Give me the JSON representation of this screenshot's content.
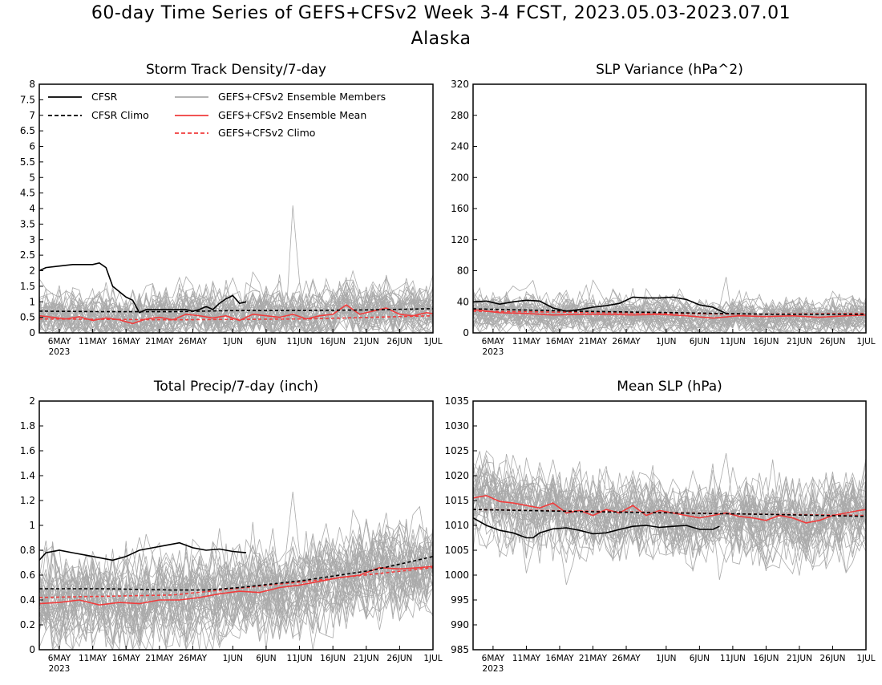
{
  "header": {
    "title_line1": "60-day Time Series of GEFS+CFSv2 Week 3-4 FCST, 2023.05.03-2023.07.01",
    "title_line2": "Alaska"
  },
  "colors": {
    "cfsr": "#000000",
    "ensemble_members": "#aaaaaa",
    "ensemble_mean": "#f03c3c",
    "gefs_climo": "#f03c3c"
  },
  "x_axis": {
    "n_days": 60,
    "tick_labels": [
      "6MAY",
      "11MAY",
      "16MAY",
      "21MAY",
      "26MAY",
      "1JUN",
      "6JUN",
      "11JUN",
      "16JUN",
      "21JUN",
      "26JUN",
      "1JUL"
    ],
    "tick_days": [
      3,
      8,
      13,
      18,
      23,
      29,
      34,
      39,
      44,
      49,
      54,
      59
    ],
    "year_label": "2023"
  },
  "legend": {
    "cfsr": "CFSR",
    "cfsr_climo": "CFSR Climo",
    "members": "GEFS+CFSv2 Ensemble Members",
    "mean": "GEFS+CFSv2 Ensemble Mean",
    "climo": "GEFS+CFSv2 Climo"
  },
  "chart_data": [
    {
      "type": "line",
      "title": "Storm Track Density/7-day",
      "ylim": [
        0,
        8
      ],
      "yticks": [
        "0",
        "0.5",
        "1",
        "1.5",
        "2",
        "2.5",
        "3",
        "3.5",
        "4",
        "4.5",
        "5",
        "5.5",
        "6",
        "6.5",
        "7",
        "7.5",
        "8"
      ],
      "x": "days since 2023-05-03 (0-59)",
      "series": [
        {
          "name": "CFSR",
          "style": "solid-black",
          "x": [
            0,
            1,
            3,
            5,
            8,
            9,
            10,
            11,
            13,
            14,
            15,
            16,
            18,
            20,
            22,
            23,
            24,
            25,
            26,
            27,
            28,
            29,
            30,
            31
          ],
          "values": [
            2.0,
            2.1,
            2.15,
            2.2,
            2.2,
            2.25,
            2.1,
            1.5,
            1.15,
            1.05,
            0.65,
            0.75,
            0.75,
            0.75,
            0.75,
            0.7,
            0.75,
            0.85,
            0.75,
            0.95,
            1.1,
            1.2,
            0.95,
            1.0
          ]
        },
        {
          "name": "CFSR Climo",
          "style": "dashed-black",
          "x": [
            0,
            10,
            20,
            30,
            40,
            50,
            59
          ],
          "values": [
            0.7,
            0.68,
            0.68,
            0.72,
            0.72,
            0.74,
            0.78
          ]
        },
        {
          "name": "GEFS+CFSv2 Ensemble Mean",
          "style": "solid-red",
          "x": [
            0,
            2,
            4,
            6,
            8,
            10,
            12,
            14,
            16,
            18,
            20,
            22,
            24,
            26,
            28,
            30,
            32,
            34,
            36,
            38,
            40,
            42,
            44,
            46,
            48,
            50,
            52,
            54,
            56,
            58,
            59
          ],
          "values": [
            0.55,
            0.5,
            0.45,
            0.52,
            0.4,
            0.48,
            0.42,
            0.3,
            0.45,
            0.5,
            0.42,
            0.6,
            0.55,
            0.48,
            0.55,
            0.4,
            0.6,
            0.55,
            0.5,
            0.6,
            0.45,
            0.55,
            0.6,
            0.9,
            0.6,
            0.7,
            0.8,
            0.6,
            0.55,
            0.65,
            0.62
          ]
        },
        {
          "name": "GEFS+CFSv2 Climo",
          "style": "dashed-red",
          "x": [
            0,
            20,
            40,
            59
          ],
          "values": [
            0.45,
            0.42,
            0.45,
            0.55
          ]
        }
      ],
      "members_envelope": {
        "count": 40,
        "typical_range": [
          0.0,
          1.8
        ],
        "max_spike": 4.1
      }
    },
    {
      "type": "line",
      "title": "SLP Variance (hPa^2)",
      "ylim": [
        0,
        320
      ],
      "yticks": [
        "0",
        "40",
        "80",
        "120",
        "160",
        "200",
        "240",
        "280",
        "320"
      ],
      "x": "days since 2023-05-03 (0-59)",
      "series": [
        {
          "name": "CFSR",
          "style": "solid-black",
          "x": [
            0,
            2,
            4,
            6,
            8,
            10,
            12,
            14,
            16,
            18,
            20,
            22,
            24,
            26,
            28,
            30,
            32,
            34,
            36,
            38
          ],
          "values": [
            40,
            41,
            37,
            40,
            42,
            41,
            32,
            28,
            30,
            33,
            35,
            38,
            46,
            45,
            45,
            46,
            43,
            36,
            33,
            25
          ]
        },
        {
          "name": "CFSR Climo",
          "style": "dashed-black",
          "x": [
            0,
            15,
            30,
            45,
            59
          ],
          "values": [
            31,
            28,
            26,
            24,
            24
          ]
        },
        {
          "name": "GEFS+CFSv2 Ensemble Mean",
          "style": "solid-red",
          "x": [
            0,
            4,
            8,
            12,
            16,
            20,
            24,
            28,
            32,
            36,
            40,
            44,
            48,
            52,
            56,
            59
          ],
          "values": [
            30,
            26,
            25,
            23,
            24,
            24,
            23,
            24,
            22,
            19,
            22,
            21,
            22,
            20,
            22,
            23
          ]
        },
        {
          "name": "GEFS+CFSv2 Climo",
          "style": "dashed-red",
          "x": [
            0,
            20,
            40,
            59
          ],
          "values": [
            28,
            26,
            24,
            25
          ]
        }
      ],
      "members_envelope": {
        "count": 40,
        "typical_range": [
          8,
          55
        ],
        "max_spike": 72
      }
    },
    {
      "type": "line",
      "title": "Total Precip/7-day (inch)",
      "ylim": [
        0,
        2
      ],
      "yticks": [
        "0",
        "0.2",
        "0.4",
        "0.6",
        "0.8",
        "1",
        "1.2",
        "1.4",
        "1.6",
        "1.8",
        "2"
      ],
      "x": "days since 2023-05-03 (0-59)",
      "series": [
        {
          "name": "CFSR",
          "style": "solid-black",
          "x": [
            0,
            1,
            3,
            5,
            7,
            9,
            11,
            13,
            15,
            17,
            19,
            21,
            23,
            25,
            27,
            29,
            31
          ],
          "values": [
            0.72,
            0.78,
            0.8,
            0.78,
            0.76,
            0.74,
            0.72,
            0.75,
            0.8,
            0.82,
            0.84,
            0.86,
            0.82,
            0.8,
            0.81,
            0.79,
            0.78
          ]
        },
        {
          "name": "CFSR Climo",
          "style": "dashed-black",
          "x": [
            0,
            10,
            20,
            25,
            30,
            35,
            40,
            45,
            50,
            55,
            59
          ],
          "values": [
            0.49,
            0.49,
            0.48,
            0.48,
            0.5,
            0.53,
            0.56,
            0.6,
            0.64,
            0.7,
            0.75
          ]
        },
        {
          "name": "GEFS+CFSv2 Ensemble Mean",
          "style": "solid-red",
          "x": [
            0,
            3,
            6,
            9,
            12,
            15,
            18,
            21,
            24,
            27,
            30,
            33,
            36,
            39,
            42,
            45,
            48,
            51,
            54,
            57,
            59
          ],
          "values": [
            0.37,
            0.38,
            0.4,
            0.36,
            0.38,
            0.37,
            0.4,
            0.4,
            0.42,
            0.45,
            0.47,
            0.46,
            0.5,
            0.52,
            0.55,
            0.58,
            0.6,
            0.66,
            0.65,
            0.66,
            0.67
          ]
        },
        {
          "name": "GEFS+CFSv2 Climo",
          "style": "dashed-red",
          "x": [
            0,
            20,
            40,
            59
          ],
          "values": [
            0.42,
            0.44,
            0.55,
            0.66
          ]
        }
      ],
      "members_envelope": {
        "count": 40,
        "typical_range": [
          0.15,
          0.9
        ],
        "max_spike": 1.27
      }
    },
    {
      "type": "line",
      "title": "Mean SLP (hPa)",
      "ylim": [
        985,
        1035
      ],
      "yticks": [
        "985",
        "990",
        "995",
        "1000",
        "1005",
        "1010",
        "1015",
        "1020",
        "1025",
        "1030",
        "1035"
      ],
      "x": "days since 2023-05-03 (0-59)",
      "series": [
        {
          "name": "CFSR",
          "style": "solid-black",
          "x": [
            0,
            2,
            4,
            6,
            8,
            9,
            10,
            12,
            14,
            16,
            18,
            20,
            22,
            24,
            26,
            28,
            30,
            32,
            34,
            36,
            37
          ],
          "values": [
            1011.5,
            1010.0,
            1009.0,
            1008.5,
            1007.5,
            1007.5,
            1008.5,
            1009.3,
            1009.5,
            1009.0,
            1008.3,
            1008.5,
            1009.2,
            1009.8,
            1010.0,
            1009.6,
            1009.8,
            1010.0,
            1009.2,
            1009.2,
            1009.8
          ]
        },
        {
          "name": "CFSR Climo",
          "style": "dashed-black",
          "x": [
            0,
            15,
            30,
            45,
            59
          ],
          "values": [
            1013.2,
            1012.8,
            1012.5,
            1012.2,
            1011.8
          ]
        },
        {
          "name": "GEFS+CFSv2 Ensemble Mean",
          "style": "solid-red",
          "x": [
            0,
            2,
            4,
            6,
            8,
            10,
            12,
            14,
            16,
            18,
            20,
            22,
            24,
            26,
            28,
            30,
            32,
            34,
            36,
            38,
            40,
            42,
            44,
            46,
            48,
            50,
            52,
            54,
            56,
            58,
            59
          ],
          "values": [
            1015.5,
            1016.0,
            1014.8,
            1014.5,
            1014.0,
            1013.5,
            1014.5,
            1012.5,
            1013.0,
            1012.0,
            1013.2,
            1012.5,
            1014.0,
            1012.0,
            1013.0,
            1012.5,
            1012.0,
            1011.5,
            1012.0,
            1012.5,
            1011.8,
            1011.5,
            1011.0,
            1012.0,
            1011.5,
            1010.5,
            1011.0,
            1012.0,
            1012.5,
            1013.0,
            1013.2
          ]
        },
        {
          "name": "GEFS+CFSv2 Climo",
          "style": "dashed-red",
          "x": [
            0,
            20,
            40,
            59
          ],
          "values": [
            1013.2,
            1012.8,
            1012.3,
            1012.0
          ]
        }
      ],
      "members_envelope": {
        "count": 40,
        "typical_range": [
          1005.5,
          1021.5
        ],
        "max_spike": 1024.5
      }
    }
  ]
}
